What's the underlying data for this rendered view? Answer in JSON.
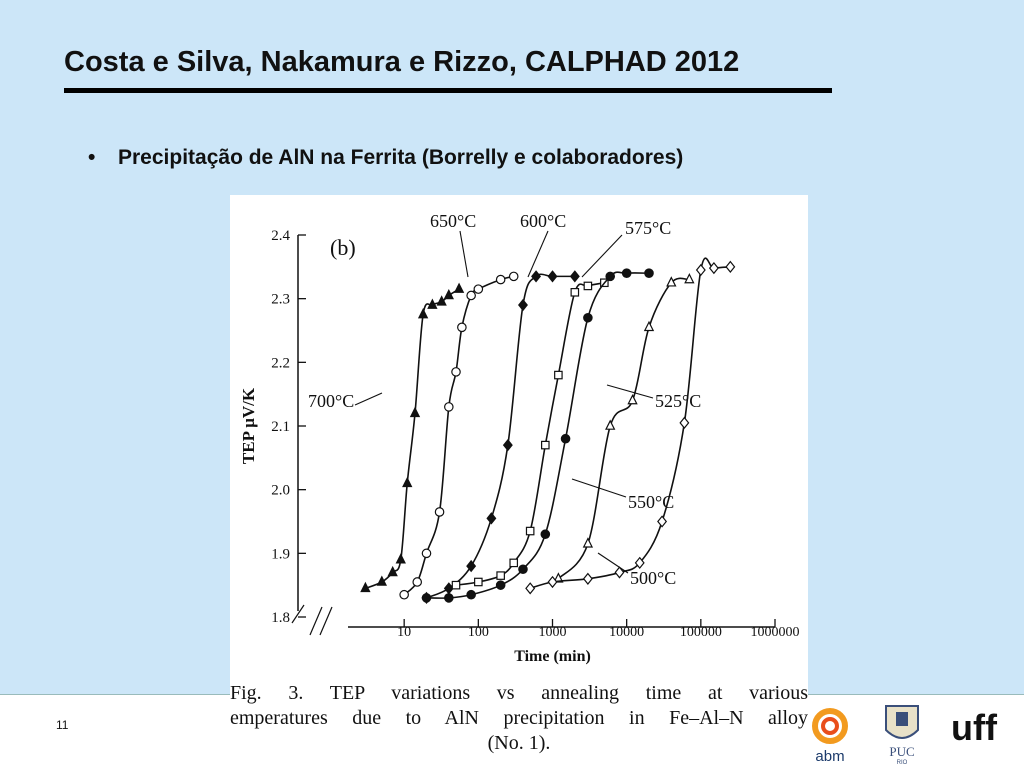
{
  "slide": {
    "title": "Costa e Silva, Nakamura e Rizzo, CALPHAD 2012",
    "bullet_symbol": "•",
    "bullet_text": "Precipitação de AlN na Ferrita  (Borrelly e colaboradores)",
    "page_number": "11"
  },
  "logos": {
    "abm": "abm",
    "puc": "PUC",
    "puc_sub": "RIO",
    "uff": "uff"
  },
  "figure": {
    "panel_label": "(b)",
    "caption_lines": [
      "Fig.  3.  TEP  variations  vs  annealing  time  at  various",
      "emperatures  due  to  AlN  precipitation  in  Fe–Al–N  alloy",
      "(No. 1)."
    ]
  },
  "chart_data": {
    "type": "scatter",
    "xlabel": "Time (min)",
    "ylabel": "TEP  μV/K",
    "x_scale": "log",
    "xlim": [
      1,
      1000000
    ],
    "ylim": [
      1.8,
      2.4
    ],
    "x_ticks": [
      10,
      100,
      1000,
      10000,
      100000,
      1000000
    ],
    "x_tick_labels": [
      "10",
      "100",
      "1000",
      "10000",
      "100000",
      "1000000"
    ],
    "y_ticks": [
      1.8,
      1.9,
      2.0,
      2.1,
      2.2,
      2.3,
      2.4
    ],
    "y_tick_labels": [
      "1.8",
      "1.9",
      "2.0",
      "2.1",
      "2.2",
      "2.3",
      "2.4"
    ],
    "grid": false,
    "series": [
      {
        "name": "700°C",
        "marker": "triangle-filled",
        "x": [
          3,
          5,
          7,
          9,
          11,
          14,
          18,
          24,
          32,
          40,
          55
        ],
        "y": [
          1.845,
          1.855,
          1.87,
          1.89,
          2.01,
          2.12,
          2.275,
          2.29,
          2.295,
          2.305,
          2.315
        ]
      },
      {
        "name": "650°C",
        "marker": "circle-open",
        "x": [
          10,
          15,
          20,
          30,
          40,
          50,
          60,
          80,
          100,
          200,
          300
        ],
        "y": [
          1.835,
          1.855,
          1.9,
          1.965,
          2.13,
          2.185,
          2.255,
          2.305,
          2.315,
          2.33,
          2.335
        ]
      },
      {
        "name": "600°C",
        "marker": "diamond-filled",
        "x": [
          20,
          40,
          80,
          150,
          250,
          400,
          600,
          1000,
          2000
        ],
        "y": [
          1.83,
          1.845,
          1.88,
          1.955,
          2.07,
          2.29,
          2.335,
          2.335,
          2.335
        ]
      },
      {
        "name": "575°C",
        "marker": "square-open",
        "x": [
          50,
          100,
          200,
          300,
          500,
          800,
          1200,
          2000,
          3000,
          5000
        ],
        "y": [
          1.85,
          1.855,
          1.865,
          1.885,
          1.935,
          2.07,
          2.18,
          2.31,
          2.32,
          2.325
        ]
      },
      {
        "name": "550°C",
        "marker": "circle-filled",
        "x": [
          20,
          40,
          80,
          200,
          400,
          800,
          1500,
          3000,
          6000,
          10000,
          20000
        ],
        "y": [
          1.83,
          1.83,
          1.835,
          1.85,
          1.875,
          1.93,
          2.08,
          2.27,
          2.335,
          2.34,
          2.34
        ]
      },
      {
        "name": "525°C",
        "marker": "triangle-open",
        "x": [
          1200,
          3000,
          6000,
          12000,
          20000,
          40000,
          70000
        ],
        "y": [
          1.86,
          1.915,
          2.1,
          2.14,
          2.255,
          2.325,
          2.33
        ]
      },
      {
        "name": "500°C",
        "marker": "diamond-open",
        "x": [
          500,
          1000,
          3000,
          8000,
          15000,
          30000,
          60000,
          100000,
          150000,
          250000
        ],
        "y": [
          1.845,
          1.855,
          1.86,
          1.87,
          1.885,
          1.95,
          2.105,
          2.345,
          2.348,
          2.35
        ]
      }
    ],
    "annotations": [
      "700°C",
      "650°C",
      "600°C",
      "575°C",
      "525°C",
      "550°C",
      "500°C"
    ]
  }
}
